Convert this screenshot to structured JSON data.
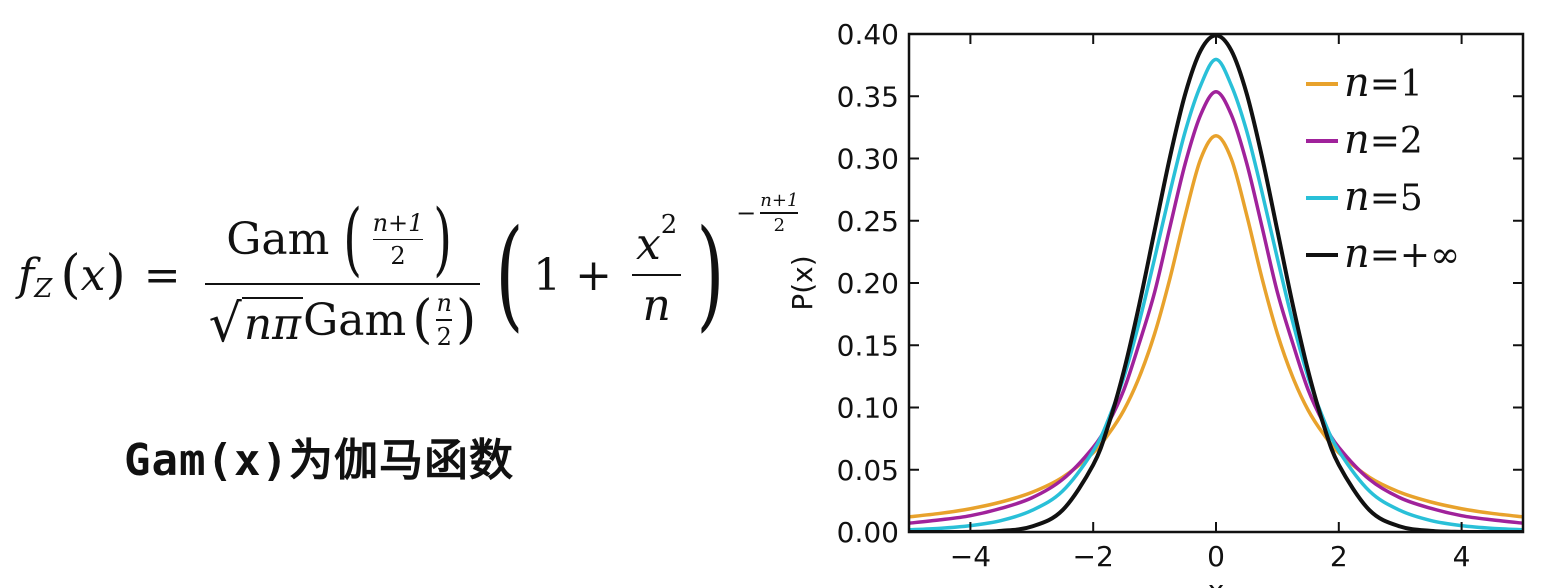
{
  "formula": {
    "lhs_f": "f",
    "lhs_sub": "Z",
    "lhs_open": "(",
    "lhs_var": "x",
    "lhs_close": ")",
    "equals": "=",
    "numerator_func": "Gam",
    "numerator_arg_num": "n+1",
    "numerator_arg_den": "2",
    "denominator_sqrt": "nπ",
    "denominator_func": "Gam",
    "denominator_arg_num": "n",
    "denominator_arg_den": "2",
    "base_one": "1",
    "base_plus": "+",
    "base_frac_num_var": "x",
    "base_frac_num_pow": "2",
    "base_frac_den": "n",
    "exponent_sign": "−",
    "exponent_num": "n+1",
    "exponent_den": "2"
  },
  "note": "Gam(x)为伽马函数",
  "chart_data": {
    "type": "line",
    "title": "",
    "xlabel": "x",
    "ylabel": "P(x)",
    "xlim": [
      -5,
      5
    ],
    "ylim": [
      0,
      0.4
    ],
    "xticks": [
      -4,
      -2,
      0,
      2,
      4
    ],
    "xtick_labels": [
      "−4",
      "−2",
      "0",
      "2",
      "4"
    ],
    "yticks": [
      0.0,
      0.05,
      0.1,
      0.15,
      0.2,
      0.25,
      0.3,
      0.35,
      0.4
    ],
    "ytick_labels": [
      "0.00",
      "0.05",
      "0.10",
      "0.15",
      "0.20",
      "0.25",
      "0.30",
      "0.35",
      "0.40"
    ],
    "grid": false,
    "legend_position": "top-right",
    "x": [
      -5,
      -4.5,
      -4,
      -3.5,
      -3,
      -2.5,
      -2,
      -1.75,
      -1.5,
      -1.25,
      -1,
      -0.75,
      -0.5,
      -0.25,
      0,
      0.25,
      0.5,
      0.75,
      1,
      1.25,
      1.5,
      1.75,
      2,
      2.5,
      3,
      3.5,
      4,
      4.5,
      5
    ],
    "series": [
      {
        "name": "n=1",
        "legend_var": "n",
        "legend_rest": "=1",
        "color": "#e8a22c",
        "values": [
          0.0122,
          0.0149,
          0.0187,
          0.0241,
          0.0318,
          0.0439,
          0.0637,
          0.0787,
          0.0979,
          0.1244,
          0.1592,
          0.2037,
          0.2546,
          0.2996,
          0.3183,
          0.2996,
          0.2546,
          0.2037,
          0.1592,
          0.1244,
          0.0979,
          0.0787,
          0.0637,
          0.0439,
          0.0318,
          0.0241,
          0.0187,
          0.0149,
          0.0122
        ]
      },
      {
        "name": "n=2",
        "legend_var": "n",
        "legend_rest": "=2",
        "color": "#a0229b",
        "values": [
          0.0071,
          0.0097,
          0.0131,
          0.019,
          0.0274,
          0.0422,
          0.068,
          0.0878,
          0.1143,
          0.1516,
          0.1925,
          0.245,
          0.2962,
          0.3351,
          0.3536,
          0.3351,
          0.2962,
          0.245,
          0.1925,
          0.1516,
          0.1143,
          0.0878,
          0.068,
          0.0422,
          0.0274,
          0.019,
          0.0131,
          0.0097,
          0.0071
        ]
      },
      {
        "name": "n=5",
        "legend_var": "n",
        "legend_rest": "=5",
        "color": "#29c0d8",
        "values": [
          0.0018,
          0.0029,
          0.0051,
          0.0092,
          0.0173,
          0.0328,
          0.0651,
          0.0907,
          0.1245,
          0.1687,
          0.2197,
          0.2728,
          0.322,
          0.3587,
          0.3796,
          0.3587,
          0.322,
          0.2728,
          0.2197,
          0.1687,
          0.1245,
          0.0907,
          0.0651,
          0.0328,
          0.0173,
          0.0092,
          0.0051,
          0.0029,
          0.0018
        ]
      },
      {
        "name": "n=+∞",
        "legend_var": "n",
        "legend_rest": "=+∞",
        "color": "#111111",
        "values": [
          0.0,
          0.0,
          0.0001,
          0.0009,
          0.0044,
          0.0175,
          0.054,
          0.0863,
          0.1295,
          0.1826,
          0.242,
          0.3011,
          0.3521,
          0.3867,
          0.3989,
          0.3867,
          0.3521,
          0.3011,
          0.242,
          0.1826,
          0.1295,
          0.0863,
          0.054,
          0.0175,
          0.0044,
          0.0009,
          0.0001,
          0.0,
          0.0
        ]
      }
    ]
  }
}
